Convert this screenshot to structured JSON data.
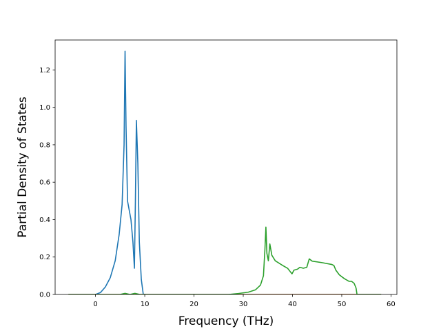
{
  "chart_data": {
    "type": "line",
    "title": "",
    "xlabel": "Frequency (THz)",
    "ylabel": "Partial Density of States",
    "xlim": [
      -8.2,
      61.2
    ],
    "ylim": [
      0.0,
      1.36
    ],
    "xticks": [
      0,
      10,
      20,
      30,
      40,
      50,
      60
    ],
    "xtick_labels": [
      "0",
      "10",
      "20",
      "30",
      "40",
      "50",
      "60"
    ],
    "yticks": [
      0.0,
      0.2,
      0.4,
      0.6,
      0.8,
      1.0,
      1.2
    ],
    "ytick_labels": [
      "0.0",
      "0.2",
      "0.4",
      "0.6",
      "0.8",
      "1.0",
      "1.2"
    ],
    "grid": false,
    "legend": "none",
    "series": [
      {
        "color": "#1f77b4",
        "points": [
          [
            -5.5,
            0.0
          ],
          [
            0.0,
            0.0
          ],
          [
            1.0,
            0.01
          ],
          [
            2.0,
            0.04
          ],
          [
            3.0,
            0.09
          ],
          [
            4.0,
            0.18
          ],
          [
            4.8,
            0.32
          ],
          [
            5.4,
            0.48
          ],
          [
            5.8,
            0.8
          ],
          [
            6.0,
            1.3
          ],
          [
            6.2,
            0.9
          ],
          [
            6.5,
            0.5
          ],
          [
            7.2,
            0.4
          ],
          [
            7.6,
            0.28
          ],
          [
            7.9,
            0.14
          ],
          [
            8.1,
            0.5
          ],
          [
            8.3,
            0.93
          ],
          [
            8.6,
            0.7
          ],
          [
            8.9,
            0.28
          ],
          [
            9.3,
            0.08
          ],
          [
            9.7,
            0.0
          ],
          [
            53.0,
            0.0
          ],
          [
            58.0,
            0.0
          ]
        ]
      },
      {
        "color": "#ff7f0e",
        "points": [
          [
            -5.5,
            0.0
          ],
          [
            58.0,
            0.0
          ]
        ]
      },
      {
        "color": "#2ca02c",
        "points": [
          [
            -5.5,
            0.0
          ],
          [
            5.0,
            0.0
          ],
          [
            6.0,
            0.006
          ],
          [
            7.0,
            0.0
          ],
          [
            8.0,
            0.006
          ],
          [
            9.0,
            0.0
          ],
          [
            27.0,
            0.0
          ],
          [
            29.0,
            0.005
          ],
          [
            31.0,
            0.012
          ],
          [
            32.5,
            0.025
          ],
          [
            33.5,
            0.05
          ],
          [
            34.1,
            0.1
          ],
          [
            34.4,
            0.24
          ],
          [
            34.6,
            0.36
          ],
          [
            34.8,
            0.22
          ],
          [
            35.1,
            0.18
          ],
          [
            35.4,
            0.27
          ],
          [
            35.8,
            0.21
          ],
          [
            36.5,
            0.18
          ],
          [
            38.0,
            0.155
          ],
          [
            39.0,
            0.14
          ],
          [
            39.6,
            0.12
          ],
          [
            39.9,
            0.11
          ],
          [
            40.3,
            0.13
          ],
          [
            41.0,
            0.135
          ],
          [
            41.5,
            0.145
          ],
          [
            42.2,
            0.14
          ],
          [
            42.9,
            0.145
          ],
          [
            43.4,
            0.19
          ],
          [
            44.0,
            0.178
          ],
          [
            46.0,
            0.17
          ],
          [
            48.0,
            0.16
          ],
          [
            48.4,
            0.155
          ],
          [
            48.8,
            0.13
          ],
          [
            49.5,
            0.105
          ],
          [
            50.5,
            0.085
          ],
          [
            51.5,
            0.07
          ],
          [
            52.0,
            0.07
          ],
          [
            52.5,
            0.06
          ],
          [
            52.9,
            0.035
          ],
          [
            53.1,
            0.0
          ],
          [
            58.0,
            0.0
          ]
        ]
      }
    ]
  }
}
